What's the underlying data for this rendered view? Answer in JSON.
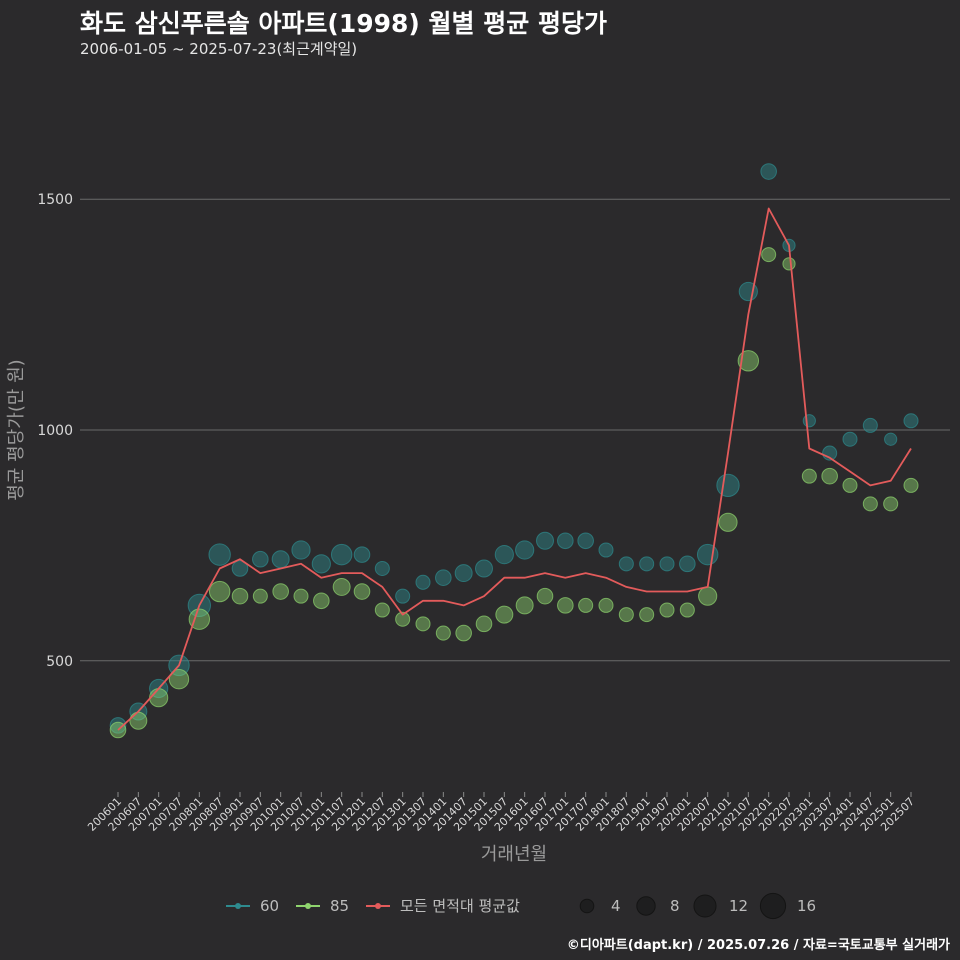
{
  "header": {
    "title": "화도 삼신푸른솔 아파트(1998) 월별 평균 평당가",
    "subtitle": "2006-01-05 ~ 2025-07-23(최근계약일)"
  },
  "footer": {
    "credit": "©디아파트(dapt.kr) / 2025.07.26 / 자료=국토교통부 실거래가"
  },
  "colors": {
    "background": "#2b2a2c",
    "grid": "#6a6a6a",
    "series_60": "#2e8b8f",
    "series_85": "#8fd46e",
    "avg_line": "#e35b5b"
  },
  "chart_data": {
    "type": "scatter",
    "title": "화도 삼신푸른솔 아파트(1998) 월별 평균 평당가",
    "xlabel": "거래년월",
    "ylabel": "평균 평당가(만 원)",
    "ylim": [
      220,
      1780
    ],
    "yticks": [
      500,
      1000,
      1500
    ],
    "x_tick_labels": [
      "200601",
      "200607",
      "200701",
      "200707",
      "200801",
      "200807",
      "200901",
      "200907",
      "201001",
      "201007",
      "201101",
      "201107",
      "201201",
      "201207",
      "201301",
      "201307",
      "201401",
      "201407",
      "201501",
      "201507",
      "201601",
      "201607",
      "201701",
      "201707",
      "201801",
      "201807",
      "201901",
      "201907",
      "202001",
      "202007",
      "202101",
      "202107",
      "202201",
      "202207",
      "202301",
      "202307",
      "202401",
      "202407",
      "202501",
      "202507"
    ],
    "grid": true,
    "legend": {
      "position": "bottom",
      "series_entries": [
        "60",
        "85",
        "모든 면적대 평균값"
      ],
      "size_entries": [
        "4",
        "8",
        "12",
        "16"
      ]
    },
    "series": [
      {
        "name": "60",
        "months": [
          "2006-01",
          "2006-07",
          "2007-01",
          "2007-07",
          "2008-01",
          "2008-07",
          "2009-01",
          "2009-07",
          "2010-01",
          "2010-07",
          "2011-01",
          "2011-07",
          "2012-01",
          "2012-07",
          "2013-01",
          "2013-07",
          "2014-01",
          "2014-07",
          "2015-01",
          "2015-07",
          "2016-01",
          "2016-07",
          "2017-01",
          "2017-07",
          "2018-01",
          "2018-07",
          "2019-01",
          "2019-07",
          "2020-01",
          "2020-07",
          "2021-01",
          "2021-07",
          "2022-01",
          "2022-07",
          "2023-01",
          "2023-07",
          "2024-01",
          "2024-07",
          "2025-01",
          "2025-07"
        ],
        "values": [
          360,
          390,
          440,
          490,
          620,
          730,
          700,
          720,
          720,
          740,
          710,
          730,
          730,
          700,
          640,
          670,
          680,
          690,
          700,
          730,
          740,
          760,
          760,
          760,
          740,
          710,
          710,
          710,
          710,
          730,
          880,
          1300,
          1560,
          1400,
          1020,
          950,
          980,
          1010,
          980,
          1020
        ],
        "counts": [
          4,
          5,
          6,
          8,
          10,
          9,
          4,
          4,
          5,
          6,
          6,
          8,
          4,
          3,
          3,
          3,
          4,
          5,
          5,
          6,
          6,
          5,
          4,
          4,
          3,
          3,
          3,
          3,
          4,
          8,
          10,
          6,
          4,
          2,
          2,
          3,
          3,
          3,
          2,
          3
        ]
      },
      {
        "name": "85",
        "months": [
          "2006-01",
          "2006-07",
          "2007-01",
          "2007-07",
          "2008-01",
          "2008-07",
          "2009-01",
          "2009-07",
          "2010-01",
          "2010-07",
          "2011-01",
          "2011-07",
          "2012-01",
          "2012-07",
          "2013-01",
          "2013-07",
          "2014-01",
          "2014-07",
          "2015-01",
          "2015-07",
          "2016-01",
          "2016-07",
          "2017-01",
          "2017-07",
          "2018-01",
          "2018-07",
          "2019-01",
          "2019-07",
          "2020-01",
          "2020-07",
          "2021-01",
          "2021-07",
          "2022-01",
          "2022-07",
          "2023-01",
          "2023-07",
          "2024-01",
          "2024-07",
          "2025-01",
          "2025-07"
        ],
        "values": [
          350,
          370,
          420,
          460,
          590,
          650,
          640,
          640,
          650,
          640,
          630,
          660,
          650,
          610,
          590,
          580,
          560,
          560,
          580,
          600,
          620,
          640,
          620,
          620,
          620,
          600,
          600,
          610,
          610,
          640,
          800,
          1150,
          1380,
          1360,
          900,
          900,
          880,
          840,
          840,
          880
        ],
        "counts": [
          4,
          5,
          6,
          7,
          8,
          8,
          4,
          3,
          4,
          3,
          4,
          5,
          4,
          3,
          3,
          3,
          3,
          4,
          4,
          5,
          5,
          4,
          4,
          3,
          3,
          3,
          3,
          3,
          3,
          6,
          6,
          8,
          3,
          2,
          3,
          4,
          3,
          3,
          3,
          3
        ]
      },
      {
        "name": "모든 면적대 평균값",
        "months": [
          "2006-01",
          "2006-07",
          "2007-01",
          "2007-07",
          "2008-01",
          "2008-07",
          "2009-01",
          "2009-07",
          "2010-01",
          "2010-07",
          "2011-01",
          "2011-07",
          "2012-01",
          "2012-07",
          "2013-01",
          "2013-07",
          "2014-01",
          "2014-07",
          "2015-01",
          "2015-07",
          "2016-01",
          "2016-07",
          "2017-01",
          "2017-07",
          "2018-01",
          "2018-07",
          "2019-01",
          "2019-07",
          "2020-01",
          "2020-07",
          "2021-01",
          "2021-07",
          "2022-01",
          "2022-07",
          "2023-01",
          "2023-07",
          "2024-01",
          "2024-07",
          "2025-01",
          "2025-07"
        ],
        "values": [
          350,
          390,
          440,
          490,
          620,
          700,
          720,
          690,
          700,
          710,
          680,
          690,
          690,
          660,
          600,
          630,
          630,
          620,
          640,
          680,
          680,
          690,
          680,
          690,
          680,
          660,
          650,
          650,
          650,
          660,
          950,
          1250,
          1480,
          1400,
          960,
          940,
          910,
          880,
          890,
          960
        ]
      }
    ]
  }
}
